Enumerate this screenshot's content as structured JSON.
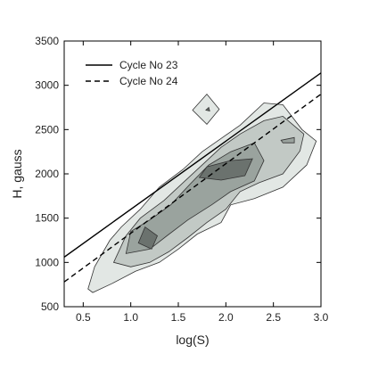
{
  "chart_data": {
    "type": "contour",
    "xlabel": "log(S)",
    "ylabel": "H, gauss",
    "xlim": [
      0.3,
      3.0
    ],
    "ylim": [
      500,
      3500
    ],
    "xticks": [
      0.5,
      1.0,
      1.5,
      2.0,
      2.5,
      3.0
    ],
    "xtick_labels": [
      "0.5",
      "1.0",
      "1.5",
      "2.0",
      "2.5",
      "3.0"
    ],
    "yticks": [
      500,
      1000,
      1500,
      2000,
      2500,
      3000,
      3500
    ],
    "ytick_labels": [
      "500",
      "1000",
      "1500",
      "2000",
      "2500",
      "3000",
      "3500"
    ],
    "legend_position": "top-left",
    "grid": false,
    "series": [
      {
        "name": "Cycle No 23",
        "style": "solid",
        "color": "#000000",
        "x": [
          0.3,
          3.0
        ],
        "y": [
          1060,
          3140
        ]
      },
      {
        "name": "Cycle No 24",
        "style": "dashed",
        "color": "#000000",
        "x": [
          0.3,
          3.0
        ],
        "y": [
          780,
          2900
        ]
      }
    ],
    "contour_levels": [
      {
        "level": 1,
        "fill": "#e2e7e4",
        "polygons": [
          [
            [
              0.55,
              700
            ],
            [
              0.62,
              950
            ],
            [
              0.78,
              1250
            ],
            [
              0.9,
              1400
            ],
            [
              1.1,
              1600
            ],
            [
              1.3,
              1850
            ],
            [
              1.55,
              2050
            ],
            [
              1.75,
              2250
            ],
            [
              1.95,
              2400
            ],
            [
              2.15,
              2550
            ],
            [
              2.4,
              2800
            ],
            [
              2.6,
              2780
            ],
            [
              2.8,
              2500
            ],
            [
              2.95,
              2370
            ],
            [
              2.85,
              2100
            ],
            [
              2.6,
              1850
            ],
            [
              2.3,
              1720
            ],
            [
              2.05,
              1650
            ],
            [
              1.95,
              1450
            ],
            [
              1.7,
              1320
            ],
            [
              1.5,
              1150
            ],
            [
              1.3,
              1000
            ],
            [
              1.05,
              900
            ],
            [
              0.8,
              760
            ],
            [
              0.6,
              660
            ]
          ],
          [
            [
              1.65,
              2720
            ],
            [
              1.8,
              2900
            ],
            [
              1.93,
              2730
            ],
            [
              1.8,
              2560
            ]
          ]
        ]
      },
      {
        "level": 2,
        "fill": "#c2c9c5",
        "polygons": [
          [
            [
              0.82,
              1000
            ],
            [
              0.95,
              1300
            ],
            [
              1.1,
              1500
            ],
            [
              1.35,
              1700
            ],
            [
              1.55,
              1900
            ],
            [
              1.75,
              2100
            ],
            [
              1.95,
              2300
            ],
            [
              2.15,
              2450
            ],
            [
              2.4,
              2600
            ],
            [
              2.6,
              2650
            ],
            [
              2.82,
              2450
            ],
            [
              2.78,
              2260
            ],
            [
              2.6,
              2000
            ],
            [
              2.35,
              1900
            ],
            [
              2.15,
              1800
            ],
            [
              2.0,
              1600
            ],
            [
              1.8,
              1450
            ],
            [
              1.6,
              1280
            ],
            [
              1.4,
              1120
            ],
            [
              1.2,
              1000
            ],
            [
              1.0,
              950
            ]
          ]
        ]
      },
      {
        "level": 3,
        "fill": "#9aa39e",
        "polygons": [
          [
            [
              0.95,
              1100
            ],
            [
              1.0,
              1350
            ],
            [
              1.2,
              1480
            ],
            [
              1.42,
              1650
            ],
            [
              1.62,
              1880
            ],
            [
              1.82,
              2100
            ],
            [
              2.05,
              2250
            ],
            [
              2.3,
              2350
            ],
            [
              2.4,
              2150
            ],
            [
              2.3,
              1920
            ],
            [
              2.05,
              1800
            ],
            [
              1.85,
              1650
            ],
            [
              1.6,
              1480
            ],
            [
              1.38,
              1300
            ],
            [
              1.2,
              1150
            ]
          ],
          [
            [
              2.58,
              2380
            ],
            [
              2.72,
              2410
            ],
            [
              2.72,
              2350
            ],
            [
              2.6,
              2350
            ]
          ]
        ]
      },
      {
        "level": 4,
        "fill": "#6b726e",
        "polygons": [
          [
            [
              1.08,
              1220
            ],
            [
              1.15,
              1400
            ],
            [
              1.28,
              1300
            ],
            [
              1.22,
              1150
            ]
          ],
          [
            [
              1.72,
              1960
            ],
            [
              1.8,
              2080
            ],
            [
              2.05,
              2150
            ],
            [
              2.28,
              2170
            ],
            [
              2.2,
              1980
            ],
            [
              1.95,
              1930
            ]
          ],
          [
            [
              1.79,
              2720
            ],
            [
              1.82,
              2750
            ],
            [
              1.83,
              2710
            ]
          ]
        ]
      }
    ]
  }
}
